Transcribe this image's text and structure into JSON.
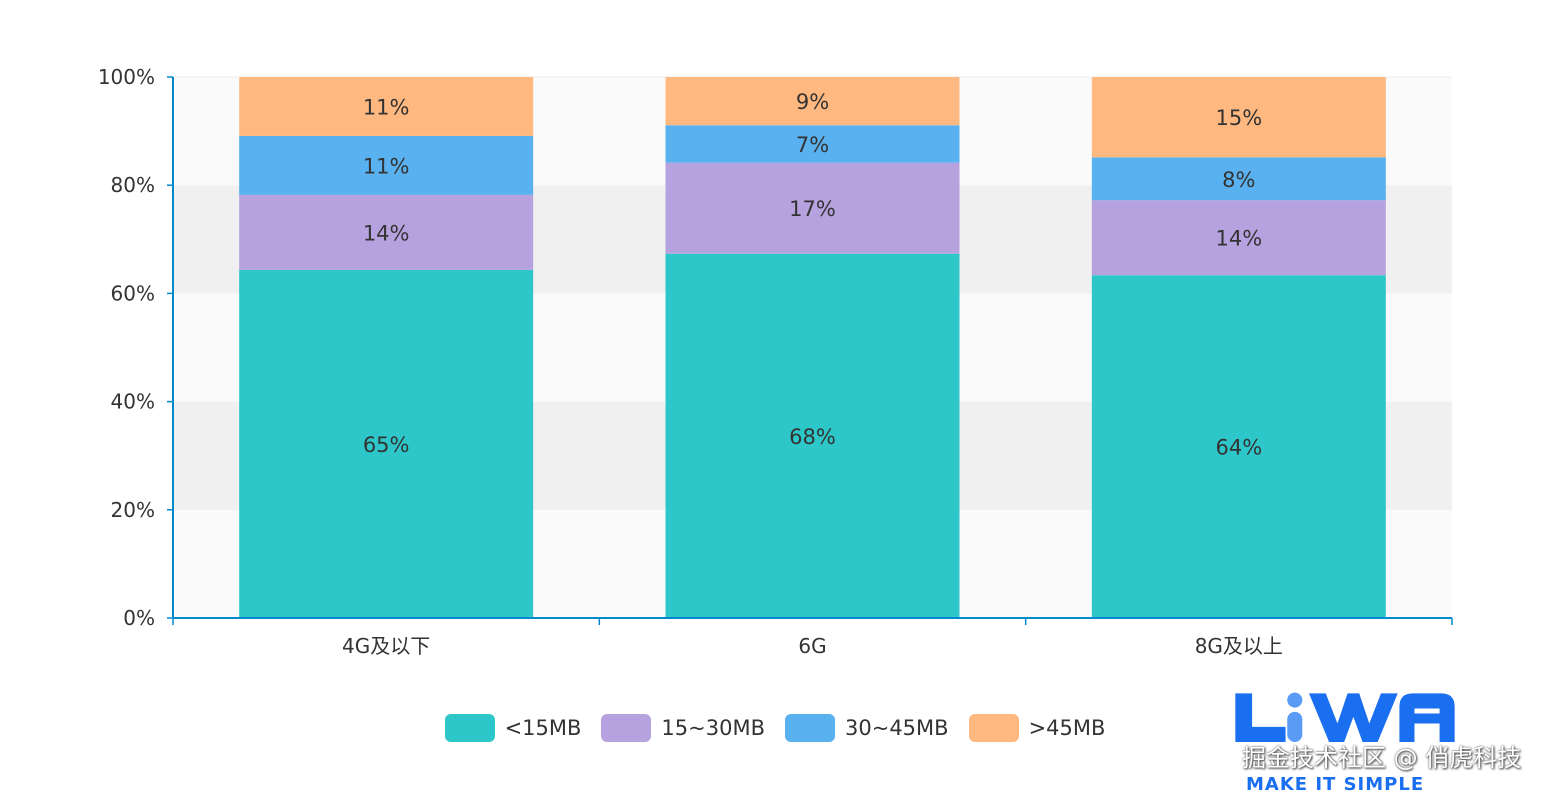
{
  "chart_data": {
    "type": "bar",
    "stacked": true,
    "categories": [
      "4G及以下",
      "6G",
      "8G及以上"
    ],
    "series": [
      {
        "name": "<15MB",
        "values": [
          65,
          68,
          64
        ],
        "color": "#2ec7c9"
      },
      {
        "name": "15~30MB",
        "values": [
          14,
          17,
          14
        ],
        "color": "#b6a2de"
      },
      {
        "name": "30~45MB",
        "values": [
          11,
          7,
          8
        ],
        "color": "#5ab1ef"
      },
      {
        "name": ">45MB",
        "values": [
          11,
          9,
          15
        ],
        "color": ">#ffb980"
      }
    ],
    "yticks": [
      "0%",
      "20%",
      "40%",
      "60%",
      "80%",
      "100%"
    ],
    "ylim": [
      0,
      100
    ],
    "ylabel": "",
    "xlabel": "",
    "grid": "alternating bands",
    "legend_position": "bottom",
    "axis_color": "#008acd"
  },
  "watermark": {
    "logo_text": "LiWA",
    "logo_tagline": "MAKE IT SIMPLE",
    "text": "掘金技术社区 @ 俏虎科技"
  }
}
